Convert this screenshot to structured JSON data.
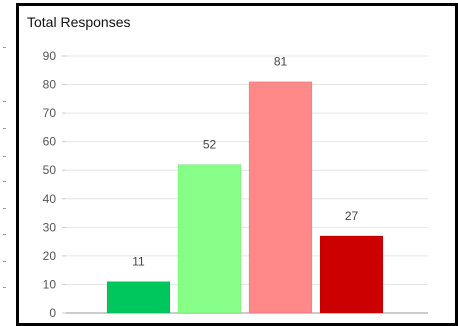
{
  "chart_data": {
    "type": "bar",
    "title": "Total Responses",
    "categories": [
      "",
      "",
      "",
      ""
    ],
    "values": [
      11,
      52,
      81,
      27
    ],
    "colors": [
      "#00c65e",
      "#88ff88",
      "#ff8888",
      "#cc0000"
    ],
    "ylim": [
      0,
      90
    ],
    "yticks": [
      0,
      10,
      20,
      30,
      40,
      50,
      60,
      70,
      80,
      90
    ],
    "grid": true,
    "data_labels": true,
    "legend": "none",
    "xlabel": "",
    "ylabel": ""
  }
}
